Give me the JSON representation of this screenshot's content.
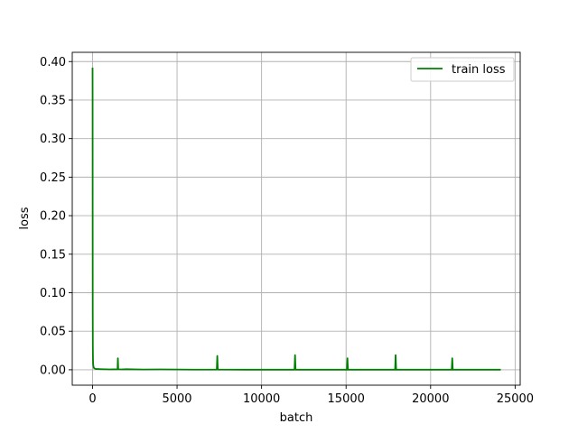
{
  "chart_data": {
    "type": "line",
    "title": "",
    "xlabel": "batch",
    "ylabel": "loss",
    "xlim": [
      -1200,
      25300
    ],
    "ylim": [
      -0.02,
      0.412
    ],
    "xticks": [
      0,
      5000,
      10000,
      15000,
      20000,
      25000
    ],
    "yticks": [
      0.0,
      0.05,
      0.1,
      0.15,
      0.2,
      0.25,
      0.3,
      0.35,
      0.4
    ],
    "xtick_labels": [
      "0",
      "5000",
      "10000",
      "15000",
      "20000",
      "25000"
    ],
    "ytick_labels": [
      "0.00",
      "0.05",
      "0.10",
      "0.15",
      "0.20",
      "0.25",
      "0.30",
      "0.35",
      "0.40"
    ],
    "grid": true,
    "legend_position": "top-right",
    "series": [
      {
        "name": "train loss",
        "color": "#008000",
        "x": [
          0,
          2,
          5,
          8,
          12,
          18,
          25,
          35,
          50,
          70,
          100,
          150,
          200,
          300,
          500,
          800,
          1000,
          1300,
          1480,
          1500,
          1520,
          1700,
          2000,
          3000,
          4000,
          5000,
          6000,
          7000,
          7350,
          7380,
          7410,
          8000,
          9000,
          10000,
          11000,
          11950,
          11980,
          12010,
          13000,
          14000,
          15050,
          15080,
          15110,
          16000,
          17000,
          17900,
          17930,
          17960,
          19000,
          20000,
          21250,
          21280,
          21310,
          22000,
          23000,
          24000,
          24150
        ],
        "y": [
          0.392,
          0.39,
          0.35,
          0.2,
          0.075,
          0.03,
          0.015,
          0.008,
          0.005,
          0.003,
          0.002,
          0.0015,
          0.001,
          0.001,
          0.0008,
          0.0006,
          0.0005,
          0.0006,
          0.0005,
          0.015,
          0.0006,
          0.0005,
          0.0007,
          0.0003,
          0.0005,
          0.0003,
          0.0002,
          0.0002,
          0.0002,
          0.018,
          0.0002,
          0.0002,
          0.0001,
          0.0001,
          0.0001,
          0.0001,
          0.019,
          0.0001,
          0.0001,
          0.0001,
          0.0001,
          0.015,
          0.0001,
          0.0001,
          0.0001,
          0.0001,
          0.019,
          0.0001,
          0.0001,
          0.0001,
          0.0001,
          0.015,
          0.0001,
          0.0001,
          0.0001,
          0.0001,
          0.0001
        ]
      }
    ]
  }
}
